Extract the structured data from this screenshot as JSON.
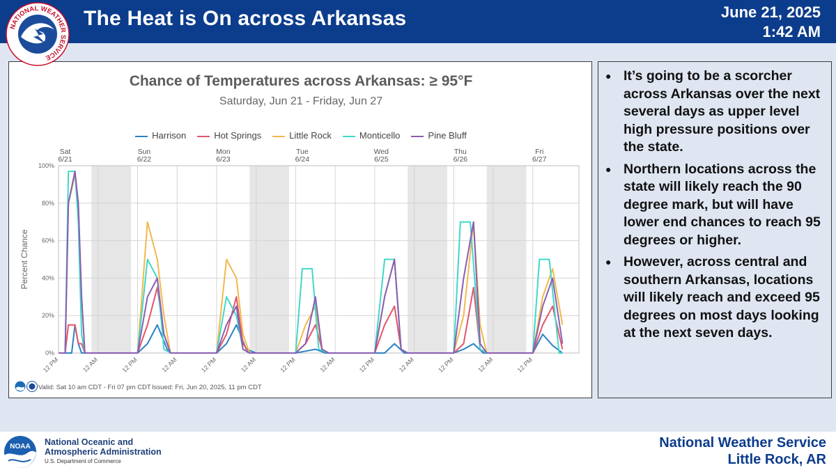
{
  "header": {
    "title": "The Heat is On across Arkansas",
    "date": "June 21, 2025",
    "time": "1:42 AM",
    "logo_text": "NATIONAL WEATHER SERVICE"
  },
  "chart_data": {
    "type": "line",
    "title": "Chance of Temperatures across Arkansas: ≥ 95°F",
    "subtitle": "Saturday, Jun 21 - Friday, Jun 27",
    "ylabel": "Percent Chance",
    "xlabel": "",
    "ylim": [
      0,
      100
    ],
    "yticks": [
      "0%",
      "20%",
      "40%",
      "60%",
      "80%",
      "100%"
    ],
    "x_range_hours": [
      0,
      158
    ],
    "day_labels": [
      {
        "day": "Sat",
        "date": "6/21"
      },
      {
        "day": "Sun",
        "date": "6/22"
      },
      {
        "day": "Mon",
        "date": "6/23"
      },
      {
        "day": "Tue",
        "date": "6/24"
      },
      {
        "day": "Wed",
        "date": "6/25"
      },
      {
        "day": "Thu",
        "date": "6/26"
      },
      {
        "day": "Fri",
        "date": "6/27"
      }
    ],
    "x_tick_labels": [
      "12 PM",
      "12 AM",
      "12 PM",
      "12 AM",
      "12 PM",
      "12 AM",
      "12 PM",
      "12 AM",
      "12 PM",
      "12 AM",
      "12 PM",
      "12 AM",
      "12 PM"
    ],
    "night_shading": [
      [
        10,
        22
      ],
      [
        58,
        70
      ],
      [
        106,
        118
      ],
      [
        130,
        142
      ]
    ],
    "series": [
      {
        "name": "Harrison",
        "color": "#2b83c6",
        "points": [
          [
            0,
            0
          ],
          [
            3,
            0
          ],
          [
            4,
            0
          ],
          [
            5,
            15
          ],
          [
            6,
            5
          ],
          [
            7,
            0
          ],
          [
            10,
            0
          ],
          [
            24,
            0
          ],
          [
            27,
            5
          ],
          [
            30,
            15
          ],
          [
            33,
            2
          ],
          [
            34,
            0
          ],
          [
            48,
            0
          ],
          [
            51,
            5
          ],
          [
            54,
            15
          ],
          [
            57,
            2
          ],
          [
            60,
            0
          ],
          [
            72,
            0
          ],
          [
            75,
            1
          ],
          [
            78,
            2
          ],
          [
            81,
            0
          ],
          [
            84,
            0
          ],
          [
            96,
            0
          ],
          [
            99,
            0
          ],
          [
            102,
            5
          ],
          [
            105,
            0
          ],
          [
            108,
            0
          ],
          [
            120,
            0
          ],
          [
            123,
            2
          ],
          [
            126,
            5
          ],
          [
            129,
            0
          ],
          [
            132,
            0
          ],
          [
            144,
            0
          ],
          [
            147,
            10
          ],
          [
            150,
            4
          ],
          [
            153,
            0
          ]
        ]
      },
      {
        "name": "Hot Springs",
        "color": "#e0566a",
        "points": [
          [
            0,
            0
          ],
          [
            2,
            0
          ],
          [
            3,
            15
          ],
          [
            5,
            15
          ],
          [
            6,
            5
          ],
          [
            7,
            5
          ],
          [
            8,
            0
          ],
          [
            10,
            0
          ],
          [
            24,
            0
          ],
          [
            27,
            15
          ],
          [
            30,
            35
          ],
          [
            32,
            10
          ],
          [
            34,
            0
          ],
          [
            48,
            0
          ],
          [
            51,
            10
          ],
          [
            54,
            30
          ],
          [
            56,
            5
          ],
          [
            58,
            0
          ],
          [
            72,
            0
          ],
          [
            75,
            5
          ],
          [
            78,
            15
          ],
          [
            80,
            2
          ],
          [
            82,
            0
          ],
          [
            96,
            0
          ],
          [
            99,
            15
          ],
          [
            102,
            25
          ],
          [
            104,
            2
          ],
          [
            106,
            0
          ],
          [
            120,
            0
          ],
          [
            123,
            5
          ],
          [
            126,
            35
          ],
          [
            128,
            2
          ],
          [
            130,
            0
          ],
          [
            144,
            0
          ],
          [
            147,
            15
          ],
          [
            150,
            25
          ],
          [
            153,
            2
          ]
        ]
      },
      {
        "name": "Little Rock",
        "color": "#f2b84b",
        "points": [
          [
            0,
            0
          ],
          [
            2,
            0
          ],
          [
            3,
            80
          ],
          [
            5,
            95
          ],
          [
            6,
            80
          ],
          [
            7,
            30
          ],
          [
            8,
            0
          ],
          [
            10,
            0
          ],
          [
            24,
            0
          ],
          [
            27,
            70
          ],
          [
            30,
            50
          ],
          [
            32,
            20
          ],
          [
            34,
            0
          ],
          [
            48,
            0
          ],
          [
            51,
            50
          ],
          [
            54,
            40
          ],
          [
            56,
            10
          ],
          [
            58,
            0
          ],
          [
            72,
            0
          ],
          [
            75,
            15
          ],
          [
            78,
            25
          ],
          [
            80,
            2
          ],
          [
            82,
            0
          ],
          [
            96,
            0
          ],
          [
            99,
            30
          ],
          [
            102,
            50
          ],
          [
            104,
            2
          ],
          [
            106,
            0
          ],
          [
            120,
            0
          ],
          [
            123,
            20
          ],
          [
            126,
            70
          ],
          [
            128,
            15
          ],
          [
            130,
            0
          ],
          [
            144,
            0
          ],
          [
            147,
            30
          ],
          [
            150,
            45
          ],
          [
            153,
            15
          ]
        ]
      },
      {
        "name": "Monticello",
        "color": "#40d8c9",
        "points": [
          [
            0,
            0
          ],
          [
            2,
            0
          ],
          [
            3,
            97
          ],
          [
            5,
            97
          ],
          [
            6,
            70
          ],
          [
            7,
            10
          ],
          [
            8,
            0
          ],
          [
            10,
            0
          ],
          [
            24,
            0
          ],
          [
            27,
            50
          ],
          [
            30,
            40
          ],
          [
            32,
            2
          ],
          [
            34,
            0
          ],
          [
            48,
            0
          ],
          [
            51,
            30
          ],
          [
            54,
            20
          ],
          [
            56,
            2
          ],
          [
            58,
            0
          ],
          [
            72,
            0
          ],
          [
            74,
            45
          ],
          [
            77,
            45
          ],
          [
            79,
            2
          ],
          [
            82,
            0
          ],
          [
            96,
            0
          ],
          [
            99,
            50
          ],
          [
            102,
            50
          ],
          [
            104,
            2
          ],
          [
            106,
            0
          ],
          [
            120,
            0
          ],
          [
            122,
            70
          ],
          [
            125,
            70
          ],
          [
            128,
            2
          ],
          [
            130,
            0
          ],
          [
            144,
            0
          ],
          [
            146,
            50
          ],
          [
            149,
            50
          ],
          [
            152,
            0
          ],
          [
            153,
            0
          ]
        ]
      },
      {
        "name": "Pine Bluff",
        "color": "#8a5db3",
        "points": [
          [
            0,
            0
          ],
          [
            2,
            0
          ],
          [
            3,
            80
          ],
          [
            5,
            97
          ],
          [
            6,
            80
          ],
          [
            7,
            30
          ],
          [
            8,
            0
          ],
          [
            10,
            0
          ],
          [
            24,
            0
          ],
          [
            27,
            30
          ],
          [
            30,
            40
          ],
          [
            32,
            10
          ],
          [
            34,
            0
          ],
          [
            48,
            0
          ],
          [
            51,
            15
          ],
          [
            54,
            25
          ],
          [
            56,
            2
          ],
          [
            58,
            0
          ],
          [
            72,
            0
          ],
          [
            75,
            5
          ],
          [
            78,
            30
          ],
          [
            80,
            2
          ],
          [
            82,
            0
          ],
          [
            96,
            0
          ],
          [
            99,
            30
          ],
          [
            102,
            50
          ],
          [
            104,
            2
          ],
          [
            106,
            0
          ],
          [
            120,
            0
          ],
          [
            123,
            40
          ],
          [
            126,
            70
          ],
          [
            128,
            5
          ],
          [
            130,
            0
          ],
          [
            144,
            0
          ],
          [
            147,
            25
          ],
          [
            150,
            40
          ],
          [
            153,
            5
          ]
        ]
      }
    ],
    "footer_valid": "Valid: Sat 10 am CDT - Fri 07 pm CDT",
    "footer_issued": "Issued: Fri, Jun 20, 2025, 11 pm CDT"
  },
  "bullets": [
    "It’s going to be a scorcher across Arkansas over the next several days as upper level high pressure positions over the state.",
    "Northern locations across the state will likely reach the 90 degree mark, but will have lower end chances to reach 95 degrees or higher.",
    "However, across central and southern Arkansas, locations will likely reach and exceed 95 degrees on most days looking at the next seven days."
  ],
  "bullet_glyph": "●",
  "footer": {
    "noaa_logo_text": "NOAA",
    "noaa_line1": "National Oceanic and",
    "noaa_line2": "Atmospheric Administration",
    "noaa_dept": "U.S. Department of Commerce",
    "nws_line1": "National Weather Service",
    "nws_line2": "Little Rock, AR"
  }
}
